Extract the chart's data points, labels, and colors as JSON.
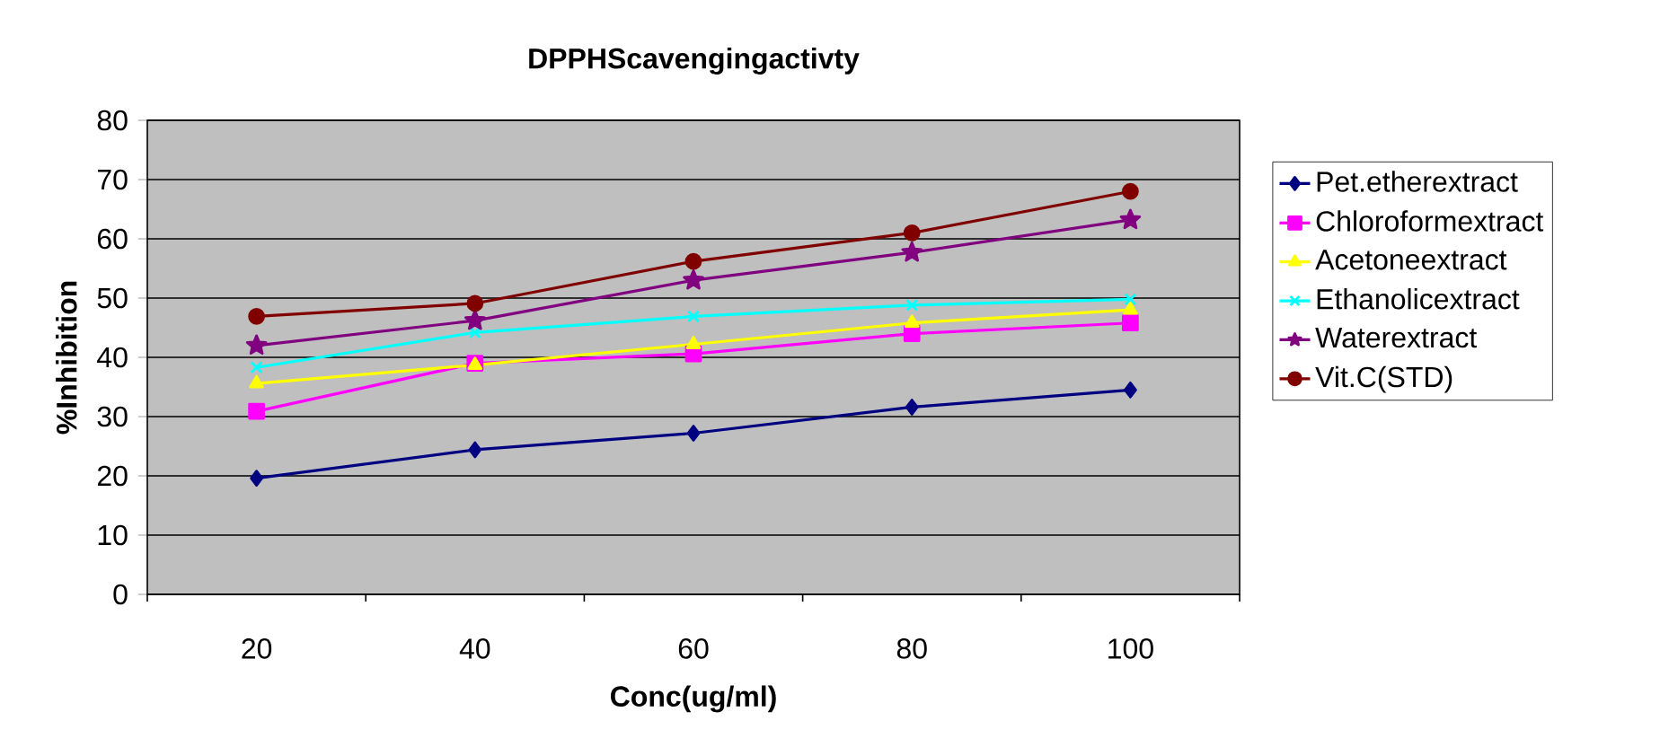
{
  "chart_data": {
    "type": "line",
    "title": "DPPHScavengingactivty",
    "xlabel": "Conc(ug/ml)",
    "ylabel": "%Inhibition",
    "categories": [
      "20",
      "40",
      "60",
      "80",
      "100"
    ],
    "ylim": [
      0,
      80
    ],
    "yticks": [
      0,
      10,
      20,
      30,
      40,
      50,
      60,
      70,
      80
    ],
    "grid": "y",
    "legend": "right",
    "series": [
      {
        "name": "Pet.etherextract",
        "color": "#000080",
        "marker": "diamond",
        "values": [
          19.6,
          24.4,
          27.2,
          31.6,
          34.5
        ]
      },
      {
        "name": "Chloroformextract",
        "color": "#ff00ff",
        "marker": "square",
        "values": [
          30.9,
          39,
          40.6,
          44,
          45.8
        ]
      },
      {
        "name": "Acetoneextract",
        "color": "#ffff00",
        "marker": "triangle",
        "values": [
          35.6,
          38.7,
          42.2,
          45.8,
          48
        ]
      },
      {
        "name": "Ethanolicextract",
        "color": "#00ffff",
        "marker": "cross",
        "values": [
          38.3,
          44.2,
          46.9,
          48.8,
          49.8
        ]
      },
      {
        "name": "Waterextract",
        "color": "#800080",
        "marker": "star",
        "values": [
          42,
          46.2,
          53,
          57.7,
          63.2
        ]
      },
      {
        "name": "Vit.C(STD)",
        "color": "#800000",
        "marker": "circle",
        "values": [
          46.9,
          49.1,
          56.2,
          61,
          68
        ]
      }
    ]
  }
}
